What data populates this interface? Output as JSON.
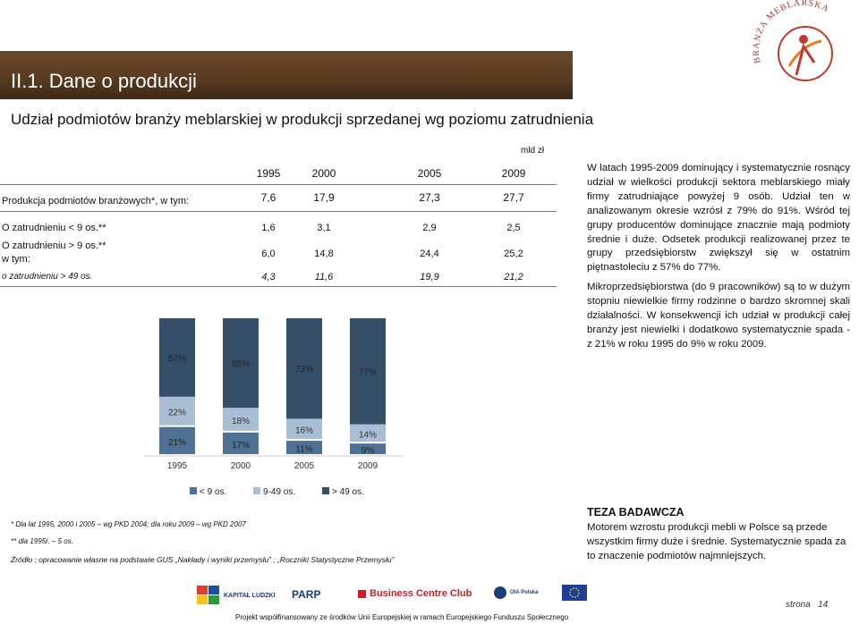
{
  "header": {
    "title": "II.1. Dane o produkcji",
    "subtitle": "Udział podmiotów branży meblarskiej  w produkcji sprzedanej wg poziomu zatrudnienia",
    "logo_text": "BRANŻA MEBLARSKA"
  },
  "table": {
    "unit": "mld zł",
    "years": [
      "1995",
      "2000",
      "2005",
      "2009"
    ],
    "rows": [
      {
        "label": "Produkcja podmiotów branżowych*, w tym:",
        "values": [
          "7,6",
          "17,9",
          "27,3",
          "27,7"
        ]
      },
      {
        "label": "O zatrudnieniu < 9 os.**",
        "values": [
          "1,6",
          "3,1",
          "2,9",
          "2,5"
        ]
      },
      {
        "label_line1": "O zatrudnieniu > 9 os.**",
        "label_line2": " w tym:",
        "values": [
          "6,0",
          "14,8",
          "24,4",
          "25,2"
        ]
      },
      {
        "label": "o zatrudnieniu > 49 os.",
        "values": [
          "4,3",
          "11,6",
          "19,9",
          "21,2"
        ]
      }
    ]
  },
  "chart_data": {
    "type": "bar",
    "stacked": true,
    "categories": [
      "1995",
      "2000",
      "2005",
      "2009"
    ],
    "series": [
      {
        "name": "< 9 os.",
        "values": [
          21,
          17,
          11,
          9
        ],
        "labels": [
          "21%",
          "17%",
          "11%",
          "9%"
        ],
        "color": "#4e7195"
      },
      {
        "name": "9-49 os.",
        "values": [
          22,
          18,
          16,
          14
        ],
        "labels": [
          "22%",
          "18%",
          "16%",
          "14%"
        ],
        "color": "#a9bdd4"
      },
      {
        "name": "> 49 os.",
        "values": [
          57,
          65,
          73,
          77
        ],
        "labels": [
          "57%",
          "65%",
          "73%",
          "77%"
        ],
        "color": "#364f69"
      }
    ],
    "ylim": [
      0,
      100
    ],
    "legend": "bottom"
  },
  "notes": {
    "note1": "* Dla lat 1995, 2000 i 2005 – wg PKD 2004; dla roku 2009 – wg PKD 2007",
    "note2": "** dla 1995r. – 5 os.",
    "source": "Źródło : opracowanie własne na podstawie GUS „Nakłady i wyniki przemysłu” ; „Roczniki Statystyczne Przemysłu”"
  },
  "description": {
    "p1": "W latach 1995-2009 dominujący i systematycznie rosnący udział w wielkości produkcji sektora meblarskiego miały firmy zatrudniające powyżej 9 osób. Udział ten w analizowanym okresie wzrósł z 79% do 91%. Wśród tej grupy producentów dominujące znacznie mają podmioty średnie i duże. Odsetek produkcji realizowanej przez te grupy przedsiębiorstw zwiększył się w ostatnim piętnastoleciu z 57% do 77%.",
    "p2": "Mikroprzedsiębiorstwa (do 9 pracowników) są to w dużym stopniu niewielkie firmy rodzinne o bardzo skromnej skali działalności. W konsekwencji ich udział w produkcji całej branży jest niewielki i dodatkowo systematycznie spada - z 21% w roku 1995 do 9% w roku 2009."
  },
  "thesis": {
    "title": "TEZA BADAWCZA",
    "body": "Motorem wzrostu produkcji mebli w Polsce są przede wszystkim firmy duże i średnie. Systematycznie spada za to znaczenie podmiotów najmniejszych."
  },
  "footer": {
    "logos": [
      "KAPITAŁ LUDZKI",
      "PARP",
      "Business Centre Club",
      "OIA Polska"
    ],
    "eu_text": "Projekt współfinansowany ze środków Unii Europejskiej w ramach Europejskiego Funduszu Społecznego",
    "page_label": "strona",
    "page_number": "14"
  },
  "colors": {
    "header_band": "#5a3c22",
    "logo_red": "#c0392b",
    "logo_orange": "#e67e22",
    "bcc_red": "#c8202a",
    "parp_blue": "#1b3d7a"
  }
}
